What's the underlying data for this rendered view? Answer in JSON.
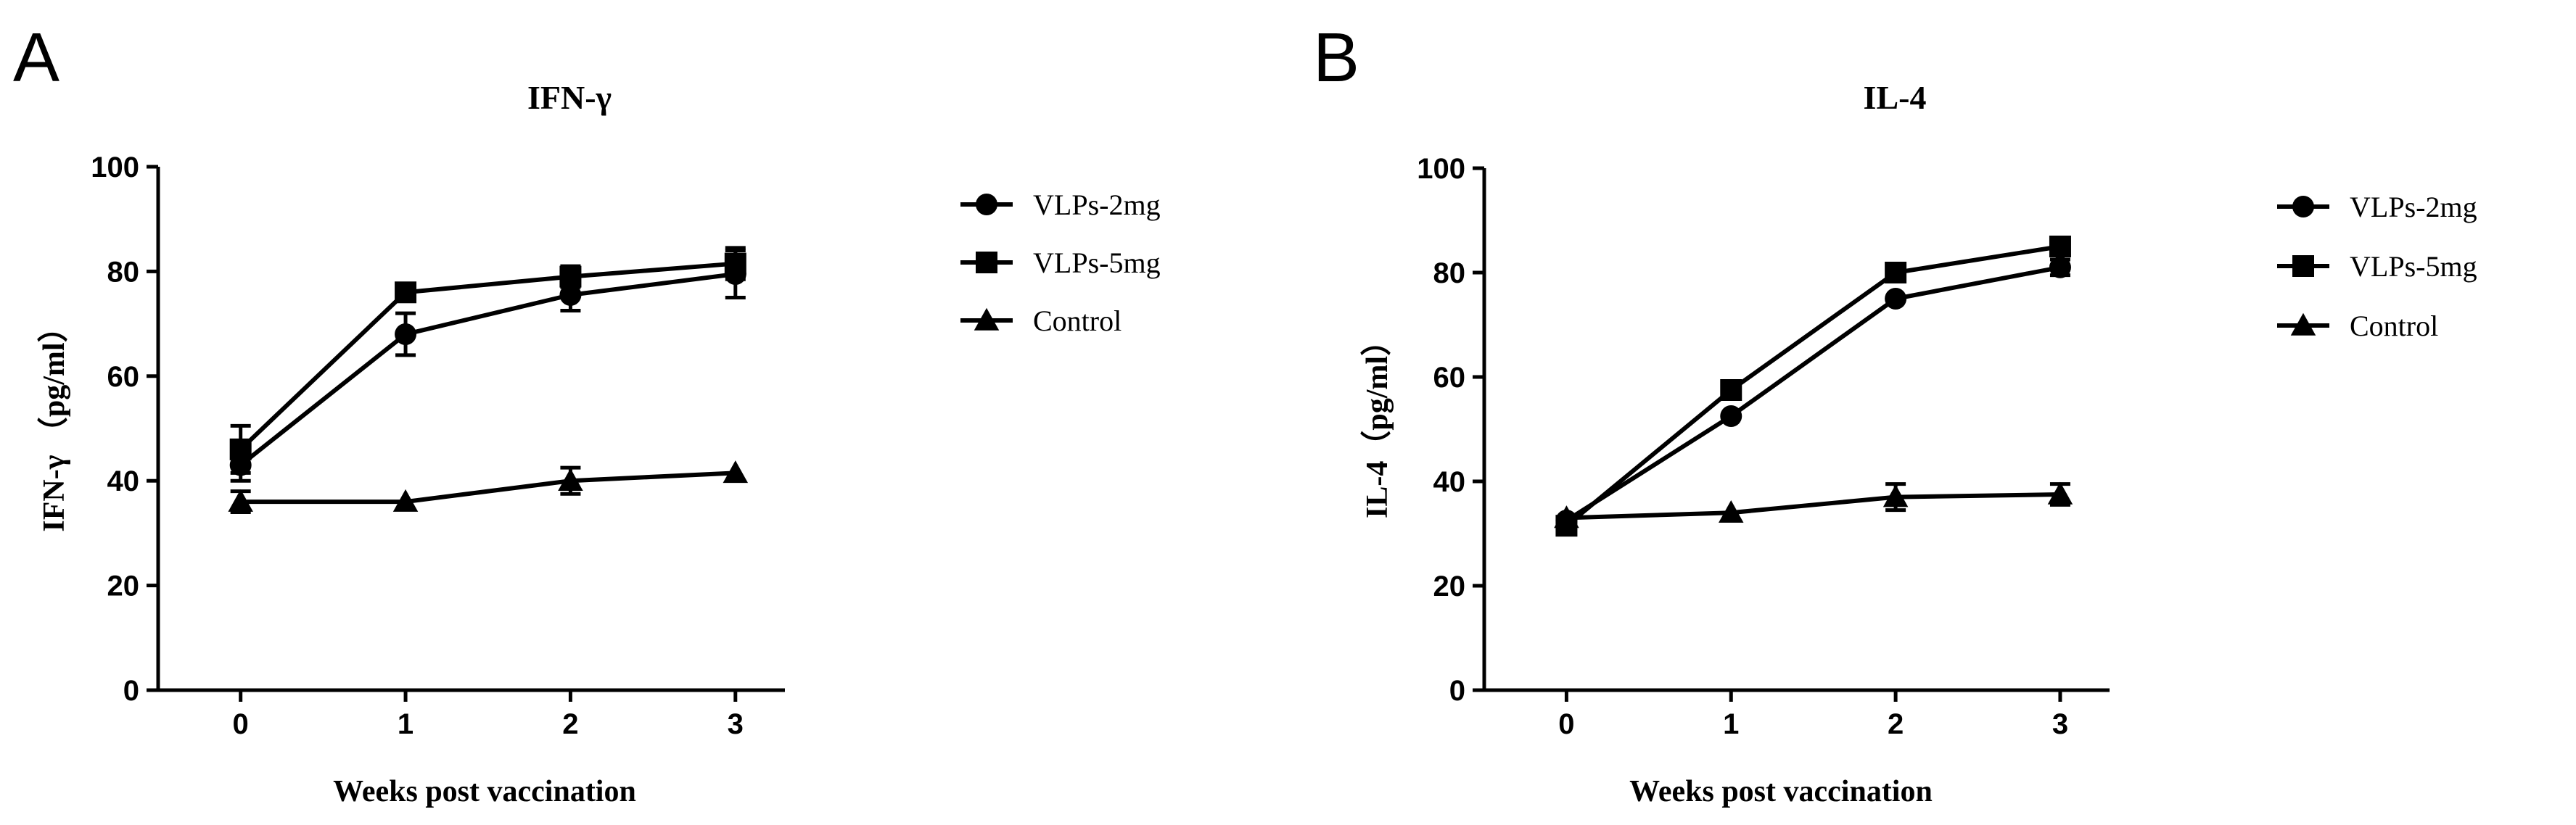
{
  "chart_data": [
    {
      "panel": "A",
      "type": "line",
      "title": "IFN-γ",
      "xlabel": "Weeks post vaccination",
      "ylabel": "IFN-γ （pg/ml）",
      "x": [
        0,
        1,
        2,
        3
      ],
      "xlim": [
        -0.5,
        3.3
      ],
      "ylim": [
        0,
        100
      ],
      "yticks": [
        0,
        20,
        40,
        60,
        80,
        100
      ],
      "legend_position": "right",
      "series": [
        {
          "name": "VLPs-2mg",
          "marker": "circle",
          "values": [
            43,
            68,
            75.5,
            79.5
          ],
          "errors": [
            3,
            4,
            3,
            4.5
          ]
        },
        {
          "name": "VLPs-5mg",
          "marker": "square",
          "values": [
            46,
            76,
            79,
            81.5
          ],
          "errors": [
            4.5,
            0,
            2,
            3
          ]
        },
        {
          "name": "Control",
          "marker": "triangle",
          "values": [
            36,
            36,
            40,
            41.5
          ],
          "errors": [
            2,
            0,
            2.5,
            0
          ]
        }
      ]
    },
    {
      "panel": "B",
      "type": "line",
      "title": "IL-4",
      "xlabel": "Weeks post vaccination",
      "ylabel": "IL-4（pg/ml）",
      "x": [
        0,
        1,
        2,
        3
      ],
      "xlim": [
        -0.5,
        3.3
      ],
      "ylim": [
        0,
        100
      ],
      "yticks": [
        0,
        20,
        40,
        60,
        80,
        100
      ],
      "legend_position": "right",
      "series": [
        {
          "name": "VLPs-2mg",
          "marker": "circle",
          "values": [
            32.5,
            52.5,
            75,
            81
          ],
          "errors": [
            0,
            0,
            0,
            1.5
          ]
        },
        {
          "name": "VLPs-5mg",
          "marker": "square",
          "values": [
            31.5,
            57.5,
            80,
            85
          ],
          "errors": [
            0,
            0,
            0,
            0
          ]
        },
        {
          "name": "Control",
          "marker": "triangle",
          "values": [
            33,
            34,
            37,
            37.5
          ],
          "errors": [
            0,
            0,
            2.5,
            2
          ]
        }
      ]
    }
  ]
}
